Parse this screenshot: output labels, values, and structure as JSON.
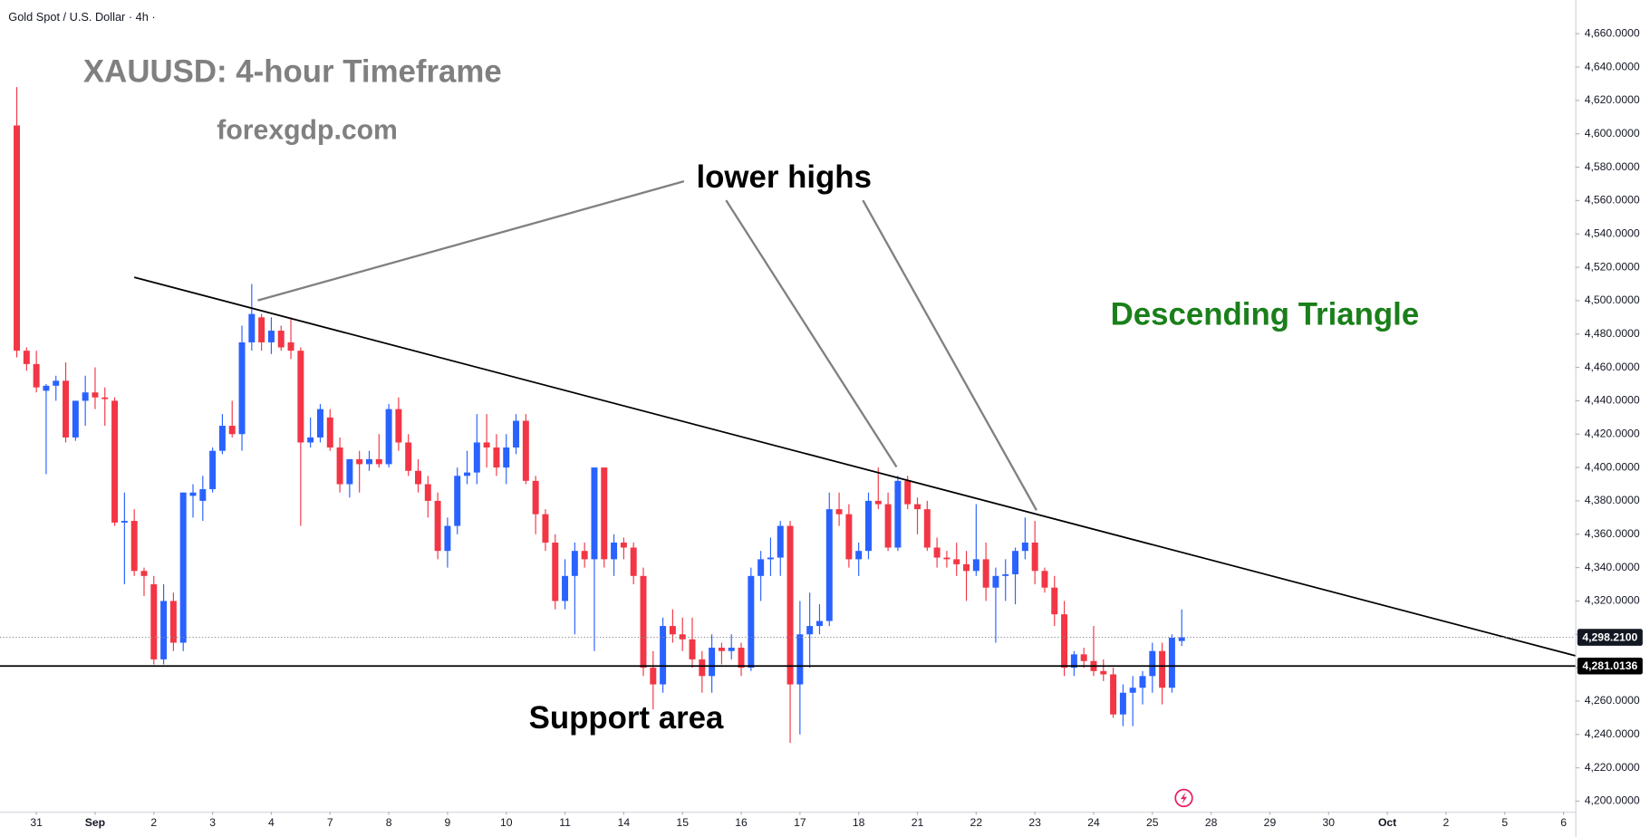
{
  "chart_data": {
    "type": "candlestick",
    "header": "Gold Spot / U.S. Dollar · 4h ·",
    "title": "XAUUSD: 4-hour Timeframe",
    "subtitle": "forexgdp.com",
    "annotations": [
      "lower highs",
      "Descending Triangle",
      "Support area"
    ],
    "up_color": "#2962ff",
    "down_color": "#f23645",
    "open": [
      4605,
      4470,
      4462,
      4446,
      4449,
      4452,
      4418,
      4440,
      4445,
      4442,
      4440,
      4367,
      4368,
      4338,
      4330,
      4285,
      4320,
      4295,
      4383,
      4380,
      4387,
      4410,
      4425,
      4420,
      4475,
      4490,
      4475,
      4482,
      4475,
      4470,
      4415,
      4418,
      4430,
      4412,
      4390,
      4405,
      4402,
      4405,
      4402,
      4435,
      4415,
      4398,
      4390,
      4380,
      4350,
      4365,
      4395,
      4397,
      4415,
      4412,
      4400,
      4412,
      4428,
      4392,
      4372,
      4355,
      4320,
      4335,
      4350,
      4345,
      4400,
      4345,
      4355,
      4352,
      4335,
      4280,
      4270,
      4305,
      4300,
      4297,
      4285,
      4275,
      4292,
      4290,
      4292,
      4280,
      4335,
      4345,
      4346,
      4365,
      4270,
      4300,
      4305,
      4308,
      4375,
      4372,
      4345,
      4350,
      4380,
      4378,
      4352,
      4392,
      4378,
      4375,
      4352,
      4346,
      4345,
      4342,
      4338,
      4345,
      4328,
      4335,
      4336,
      4350,
      4355,
      4338,
      4328,
      4312,
      4280,
      4288,
      4284,
      4278,
      4276,
      4252,
      4265,
      4268,
      4275,
      4290,
      4268,
      4296
    ],
    "high": [
      4628,
      4472,
      4470,
      4450,
      4455,
      4463,
      4440,
      4455,
      4460,
      4448,
      4442,
      4385,
      4375,
      4340,
      4335,
      4330,
      4325,
      4385,
      4390,
      4395,
      4412,
      4432,
      4440,
      4485,
      4510,
      4492,
      4490,
      4485,
      4490,
      4472,
      4430,
      4438,
      4435,
      4418,
      4405,
      4410,
      4410,
      4420,
      4438,
      4442,
      4420,
      4405,
      4395,
      4385,
      4370,
      4400,
      4410,
      4432,
      4432,
      4420,
      4420,
      4432,
      4432,
      4395,
      4375,
      4360,
      4345,
      4355,
      4355,
      4400,
      4400,
      4360,
      4358,
      4355,
      4340,
      4290,
      4310,
      4315,
      4310,
      4310,
      4290,
      4300,
      4295,
      4300,
      4295,
      4340,
      4350,
      4358,
      4368,
      4368,
      4320,
      4325,
      4318,
      4385,
      4385,
      4378,
      4355,
      4385,
      4400,
      4385,
      4395,
      4395,
      4382,
      4380,
      4358,
      4350,
      4355,
      4350,
      4378,
      4355,
      4340,
      4345,
      4352,
      4370,
      4368,
      4340,
      4335,
      4320,
      4290,
      4292,
      4305,
      4285,
      4280,
      4270,
      4275,
      4278,
      4295,
      4295,
      4300,
      4315
    ],
    "low": [
      4466,
      4458,
      4445,
      4396,
      4440,
      4415,
      4416,
      4425,
      4435,
      4425,
      4365,
      4330,
      4335,
      4323,
      4282,
      4282,
      4290,
      4290,
      4370,
      4368,
      4385,
      4408,
      4418,
      4410,
      4470,
      4470,
      4468,
      4470,
      4465,
      4365,
      4412,
      4415,
      4410,
      4385,
      4382,
      4385,
      4398,
      4400,
      4400,
      4410,
      4395,
      4385,
      4370,
      4345,
      4340,
      4360,
      4390,
      4390,
      4400,
      4395,
      4390,
      4408,
      4390,
      4360,
      4350,
      4315,
      4315,
      4300,
      4340,
      4290,
      4340,
      4335,
      4345,
      4330,
      4275,
      4255,
      4265,
      4295,
      4290,
      4280,
      4265,
      4265,
      4282,
      4285,
      4275,
      4278,
      4320,
      4335,
      4335,
      4235,
      4240,
      4280,
      4300,
      4305,
      4365,
      4340,
      4335,
      4345,
      4375,
      4350,
      4350,
      4375,
      4360,
      4350,
      4340,
      4340,
      4335,
      4320,
      4335,
      4320,
      4295,
      4320,
      4318,
      4345,
      4330,
      4325,
      4305,
      4275,
      4275,
      4280,
      4275,
      4272,
      4250,
      4245,
      4245,
      4258,
      4265,
      4258,
      4265,
      4293
    ],
    "close": [
      4470,
      4462,
      4448,
      4449,
      4452,
      4418,
      4440,
      4445,
      4442,
      4441,
      4367,
      4368,
      4338,
      4335,
      4285,
      4320,
      4295,
      4385,
      4385,
      4387,
      4410,
      4425,
      4420,
      4475,
      4492,
      4475,
      4482,
      4472,
      4470,
      4415,
      4418,
      4435,
      4412,
      4390,
      4405,
      4402,
      4405,
      4402,
      4435,
      4415,
      4398,
      4390,
      4380,
      4350,
      4365,
      4395,
      4397,
      4415,
      4412,
      4400,
      4412,
      4428,
      4392,
      4372,
      4355,
      4320,
      4335,
      4350,
      4345,
      4400,
      4345,
      4355,
      4352,
      4335,
      4280,
      4270,
      4305,
      4300,
      4297,
      4285,
      4275,
      4292,
      4290,
      4292,
      4280,
      4335,
      4345,
      4346,
      4365,
      4270,
      4300,
      4305,
      4308,
      4375,
      4372,
      4345,
      4350,
      4380,
      4378,
      4352,
      4392,
      4378,
      4375,
      4352,
      4346,
      4345,
      4342,
      4338,
      4345,
      4328,
      4335,
      4336,
      4350,
      4355,
      4338,
      4328,
      4312,
      4280,
      4288,
      4284,
      4278,
      4276,
      4252,
      4265,
      4268,
      4275,
      4290,
      4268,
      4298,
      4298.21
    ],
    "last_price": {
      "value": 4298.21,
      "label": "4,298.2100"
    },
    "support": {
      "value": 4281.0136,
      "label": "4,281.0136"
    },
    "trendline": {
      "x": [
        12,
        159.2
      ],
      "y": [
        4514,
        4287.2
      ]
    },
    "xlim": [
      -1.5,
      159.2
    ],
    "ylim": [
      4193.7,
      4680.2
    ],
    "xticks": [
      {
        "value": 2,
        "label": "31"
      },
      {
        "value": 8,
        "label": "Sep"
      },
      {
        "value": 14,
        "label": "2"
      },
      {
        "value": 20,
        "label": "3"
      },
      {
        "value": 26,
        "label": "4"
      },
      {
        "value": 32,
        "label": "7"
      },
      {
        "value": 38,
        "label": "8"
      },
      {
        "value": 44,
        "label": "9"
      },
      {
        "value": 50,
        "label": "10"
      },
      {
        "value": 56,
        "label": "11"
      },
      {
        "value": 62,
        "label": "14"
      },
      {
        "value": 68,
        "label": "15"
      },
      {
        "value": 74,
        "label": "16"
      },
      {
        "value": 80,
        "label": "17"
      },
      {
        "value": 86,
        "label": "18"
      },
      {
        "value": 92,
        "label": "21"
      },
      {
        "value": 98,
        "label": "22"
      },
      {
        "value": 104,
        "label": "23"
      },
      {
        "value": 110,
        "label": "24"
      },
      {
        "value": 116,
        "label": "25"
      },
      {
        "value": 122,
        "label": "28"
      },
      {
        "value": 128,
        "label": "29"
      },
      {
        "value": 134,
        "label": "30"
      },
      {
        "value": 140,
        "label": "Oct"
      },
      {
        "value": 146,
        "label": "2"
      },
      {
        "value": 152,
        "label": "5"
      },
      {
        "value": 158,
        "label": "6"
      }
    ],
    "yticks": [
      {
        "value": 4200,
        "label": "4,200.0000"
      },
      {
        "value": 4220,
        "label": "4,220.0000"
      },
      {
        "value": 4240,
        "label": "4,240.0000"
      },
      {
        "value": 4260,
        "label": "4,260.0000"
      },
      {
        "value": 4280,
        "label": "4,280.0000"
      },
      {
        "value": 4300,
        "label": "4,300.0000"
      },
      {
        "value": 4320,
        "label": "4,320.0000"
      },
      {
        "value": 4340,
        "label": "4,340.0000"
      },
      {
        "value": 4360,
        "label": "4,360.0000"
      },
      {
        "value": 4380,
        "label": "4,380.0000"
      },
      {
        "value": 4400,
        "label": "4,400.0000"
      },
      {
        "value": 4420,
        "label": "4,420.0000"
      },
      {
        "value": 4440,
        "label": "4,440.0000"
      },
      {
        "value": 4460,
        "label": "4,460.0000"
      },
      {
        "value": 4480,
        "label": "4,480.0000"
      },
      {
        "value": 4500,
        "label": "4,500.0000"
      },
      {
        "value": 4520,
        "label": "4,520.0000"
      },
      {
        "value": 4540,
        "label": "4,540.0000"
      },
      {
        "value": 4560,
        "label": "4,560.0000"
      },
      {
        "value": 4580,
        "label": "4,580.0000"
      },
      {
        "value": 4600,
        "label": "4,600.0000"
      },
      {
        "value": 4620,
        "label": "4,620.0000"
      },
      {
        "value": 4640,
        "label": "4,640.0000"
      },
      {
        "value": 4660,
        "label": "4,660.0000"
      }
    ]
  }
}
